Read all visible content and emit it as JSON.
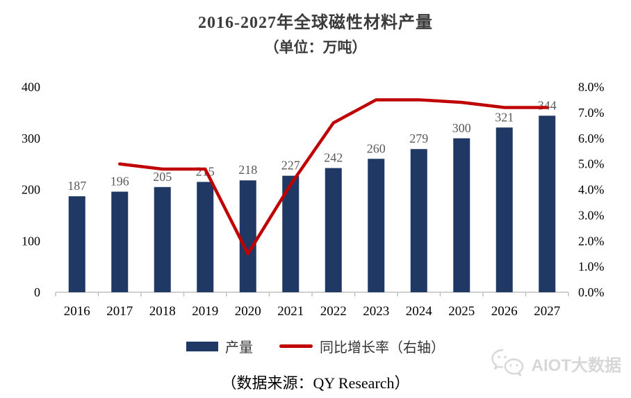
{
  "title": "2016-2027年全球磁性材料产量",
  "subtitle": "（单位：万吨）",
  "source": "（数据来源：QY Research）",
  "watermark": {
    "label": "AIOT大数据",
    "icon": "wechat-bubbles-icon"
  },
  "legend": [
    {
      "label": "产量",
      "type": "bar",
      "color": "#1f3864"
    },
    {
      "label": "同比增长率（右轴）",
      "type": "line",
      "color": "#c00000"
    }
  ],
  "colors": {
    "bar": "#1f3864",
    "line": "#c00000",
    "axis": "#c0c0c0",
    "value_label": "#595959",
    "axis_label": "#000000",
    "title": "#3b3b3b",
    "watermark": "#d7d7d7"
  },
  "chart_data": {
    "type": "bar",
    "title": "2016-2027年全球磁性材料产量（单位：万吨）",
    "categories": [
      "2016",
      "2017",
      "2018",
      "2019",
      "2020",
      "2021",
      "2022",
      "2023",
      "2024",
      "2025",
      "2026",
      "2027"
    ],
    "series": [
      {
        "name": "产量",
        "type": "bar",
        "axis": "left",
        "values": [
          187,
          196,
          205,
          215,
          218,
          227,
          242,
          260,
          279,
          300,
          321,
          344
        ]
      },
      {
        "name": "同比增长率（右轴）",
        "type": "line",
        "axis": "right",
        "unit": "%",
        "values": [
          null,
          5.0,
          4.8,
          4.8,
          1.5,
          4.2,
          6.6,
          7.5,
          7.5,
          7.4,
          7.2,
          7.2
        ]
      }
    ],
    "xlabel": "",
    "ylabel": "",
    "left_axis": {
      "range": [
        0,
        400
      ],
      "ticks": [
        0,
        100,
        200,
        300,
        400
      ]
    },
    "right_axis": {
      "range": [
        0,
        8
      ],
      "ticks": [
        "0.0%",
        "1.0%",
        "2.0%",
        "3.0%",
        "4.0%",
        "5.0%",
        "6.0%",
        "7.0%",
        "8.0%"
      ]
    },
    "grid": false,
    "legend_position": "bottom",
    "value_labels": true
  }
}
